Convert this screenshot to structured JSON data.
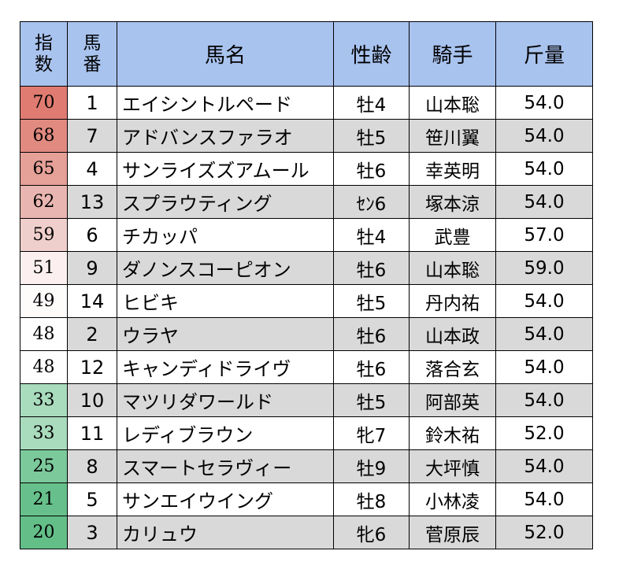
{
  "headers": {
    "index": [
      "指",
      "数"
    ],
    "number": [
      "馬",
      "番"
    ],
    "name": "馬名",
    "sex_age": "性齢",
    "jockey": "騎手",
    "weight": "斤量"
  },
  "rows": [
    {
      "index": "70",
      "number": "1",
      "name": "エイシントルペード",
      "sex_age": "牡4",
      "jockey": "山本聡",
      "weight": "54.0",
      "index_color": "#e07b71",
      "shaded": false
    },
    {
      "index": "68",
      "number": "7",
      "name": "アドバンスファラオ",
      "sex_age": "牡5",
      "jockey": "笹川翼",
      "weight": "54.0",
      "index_color": "#e18a80",
      "shaded": true
    },
    {
      "index": "65",
      "number": "4",
      "name": "サンライズズアムール",
      "sex_age": "牡6",
      "jockey": "幸英明",
      "weight": "54.0",
      "index_color": "#e5a098",
      "shaded": false
    },
    {
      "index": "62",
      "number": "13",
      "name": "スプラウティング",
      "sex_age": "ｾﾝ6",
      "jockey": "塚本涼",
      "weight": "54.0",
      "index_color": "#e9b5b0",
      "shaded": true
    },
    {
      "index": "59",
      "number": "6",
      "name": "チカッパ",
      "sex_age": "牡4",
      "jockey": "武豊",
      "weight": "57.0",
      "index_color": "#efcfcc",
      "shaded": false
    },
    {
      "index": "51",
      "number": "9",
      "name": "ダノンスコーピオン",
      "sex_age": "牡6",
      "jockey": "山本聡",
      "weight": "59.0",
      "index_color": "#fbf0ef",
      "shaded": true
    },
    {
      "index": "49",
      "number": "14",
      "name": "ヒビキ",
      "sex_age": "牡5",
      "jockey": "丹内祐",
      "weight": "54.0",
      "index_color": "#fefbfb",
      "shaded": false
    },
    {
      "index": "48",
      "number": "2",
      "name": "ウラヤ",
      "sex_age": "牡6",
      "jockey": "山本政",
      "weight": "54.0",
      "index_color": "#fdfefd",
      "shaded": true
    },
    {
      "index": "48",
      "number": "12",
      "name": "キャンディドライヴ",
      "sex_age": "牡6",
      "jockey": "落合玄",
      "weight": "54.0",
      "index_color": "#fdfefd",
      "shaded": false
    },
    {
      "index": "33",
      "number": "10",
      "name": "マツリダワールド",
      "sex_age": "牡5",
      "jockey": "阿部英",
      "weight": "54.0",
      "index_color": "#a9dbbd",
      "shaded": true
    },
    {
      "index": "33",
      "number": "11",
      "name": "レディブラウン",
      "sex_age": "牝7",
      "jockey": "鈴木祐",
      "weight": "52.0",
      "index_color": "#a9dbbd",
      "shaded": false
    },
    {
      "index": "25",
      "number": "8",
      "name": "スマートセラヴィー",
      "sex_age": "牡9",
      "jockey": "大坪慎",
      "weight": "54.0",
      "index_color": "#7cc99c",
      "shaded": true
    },
    {
      "index": "21",
      "number": "5",
      "name": "サンエイウイング",
      "sex_age": "牡8",
      "jockey": "小林凌",
      "weight": "54.0",
      "index_color": "#67c08b",
      "shaded": false
    },
    {
      "index": "20",
      "number": "3",
      "name": "カリュウ",
      "sex_age": "牝6",
      "jockey": "菅原辰",
      "weight": "52.0",
      "index_color": "#63be88",
      "shaded": true
    }
  ]
}
